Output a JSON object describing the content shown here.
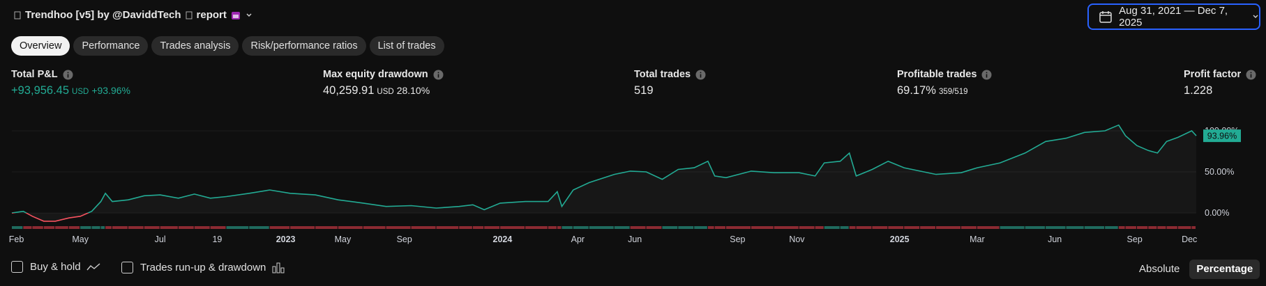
{
  "header": {
    "title": "Trendhoo [v5] by @DaviddTech",
    "suffix": "report"
  },
  "date_range": "Aug 31, 2021 — Dec 7, 2025",
  "tabs": [
    "Overview",
    "Performance",
    "Trades analysis",
    "Risk/performance ratios",
    "List of trades"
  ],
  "metrics": [
    {
      "label": "Total P&L",
      "value": "+93,956.45",
      "unit": "USD",
      "extra": "+93.96%"
    },
    {
      "label": "Max equity drawdown",
      "value": "40,259.91",
      "unit": "USD",
      "extra": "28.10%"
    },
    {
      "label": "Total trades",
      "value": "519"
    },
    {
      "label": "Profitable trades",
      "value": "69.17%",
      "extra": "359/519"
    },
    {
      "label": "Profit factor",
      "value": "1.228"
    }
  ],
  "chart_data": {
    "type": "line",
    "x": [
      0,
      5,
      9,
      14,
      19,
      25,
      30,
      35,
      39,
      41,
      44,
      51,
      58,
      65,
      73,
      80,
      87,
      94,
      104,
      113,
      122,
      133,
      143,
      154,
      164,
      175,
      186,
      196,
      202,
      207,
      214,
      225,
      235,
      239,
      241,
      246,
      253,
      264,
      271,
      278,
      285,
      292,
      299,
      305,
      308,
      313,
      324,
      334,
      345,
      352,
      356,
      363,
      367,
      370,
      377,
      384,
      391,
      398,
      405,
      416,
      423,
      433,
      444,
      453,
      462,
      470,
      479,
      485,
      488,
      493,
      498,
      502,
      506,
      511,
      517,
      519
    ],
    "values": [
      0,
      2,
      -4,
      -10,
      -10,
      -6,
      -4,
      2,
      14,
      24,
      14,
      16,
      21,
      22,
      18,
      23,
      18,
      20,
      24,
      28,
      24,
      22,
      16,
      12,
      8,
      9,
      6,
      8,
      10,
      4,
      12,
      14,
      14,
      26,
      8,
      28,
      37,
      47,
      51,
      50,
      41,
      53,
      55,
      63,
      45,
      43,
      51,
      49,
      49,
      45,
      61,
      63,
      73,
      45,
      53,
      63,
      55,
      51,
      47,
      49,
      55,
      61,
      73,
      87,
      91,
      98,
      100,
      107,
      94,
      82,
      76,
      73,
      87,
      92,
      100,
      93.96
    ],
    "end_label": "93.96%",
    "color": "#22ab94",
    "negative_color": "#f7525f",
    "xlim": [
      0,
      519
    ],
    "xticks": [
      {
        "value": 2,
        "label": "Feb"
      },
      {
        "value": 30,
        "label": "May"
      },
      {
        "value": 65,
        "label": "Jul"
      },
      {
        "value": 90,
        "label": "19"
      },
      {
        "value": 120,
        "label": "2023"
      },
      {
        "value": 145,
        "label": "May"
      },
      {
        "value": 172,
        "label": "Sep"
      },
      {
        "value": 215,
        "label": "2024"
      },
      {
        "value": 248,
        "label": "Apr"
      },
      {
        "value": 273,
        "label": "Jun"
      },
      {
        "value": 318,
        "label": "Sep"
      },
      {
        "value": 344,
        "label": "Nov"
      },
      {
        "value": 389,
        "label": "2025"
      },
      {
        "value": 423,
        "label": "Mar"
      },
      {
        "value": 457,
        "label": "Jun"
      },
      {
        "value": 492,
        "label": "Sep"
      },
      {
        "value": 516,
        "label": "Dec"
      }
    ],
    "ylim": [
      -16,
      122
    ],
    "yticks": [
      {
        "value": 0,
        "label": "0.00%"
      },
      {
        "value": 50,
        "label": "50.00%"
      },
      {
        "value": 100,
        "label": "100.00%"
      }
    ]
  },
  "footer": {
    "options": [
      "Buy & hold",
      "Trades run-up & drawdown"
    ],
    "modes": [
      "Absolute",
      "Percentage"
    ]
  }
}
